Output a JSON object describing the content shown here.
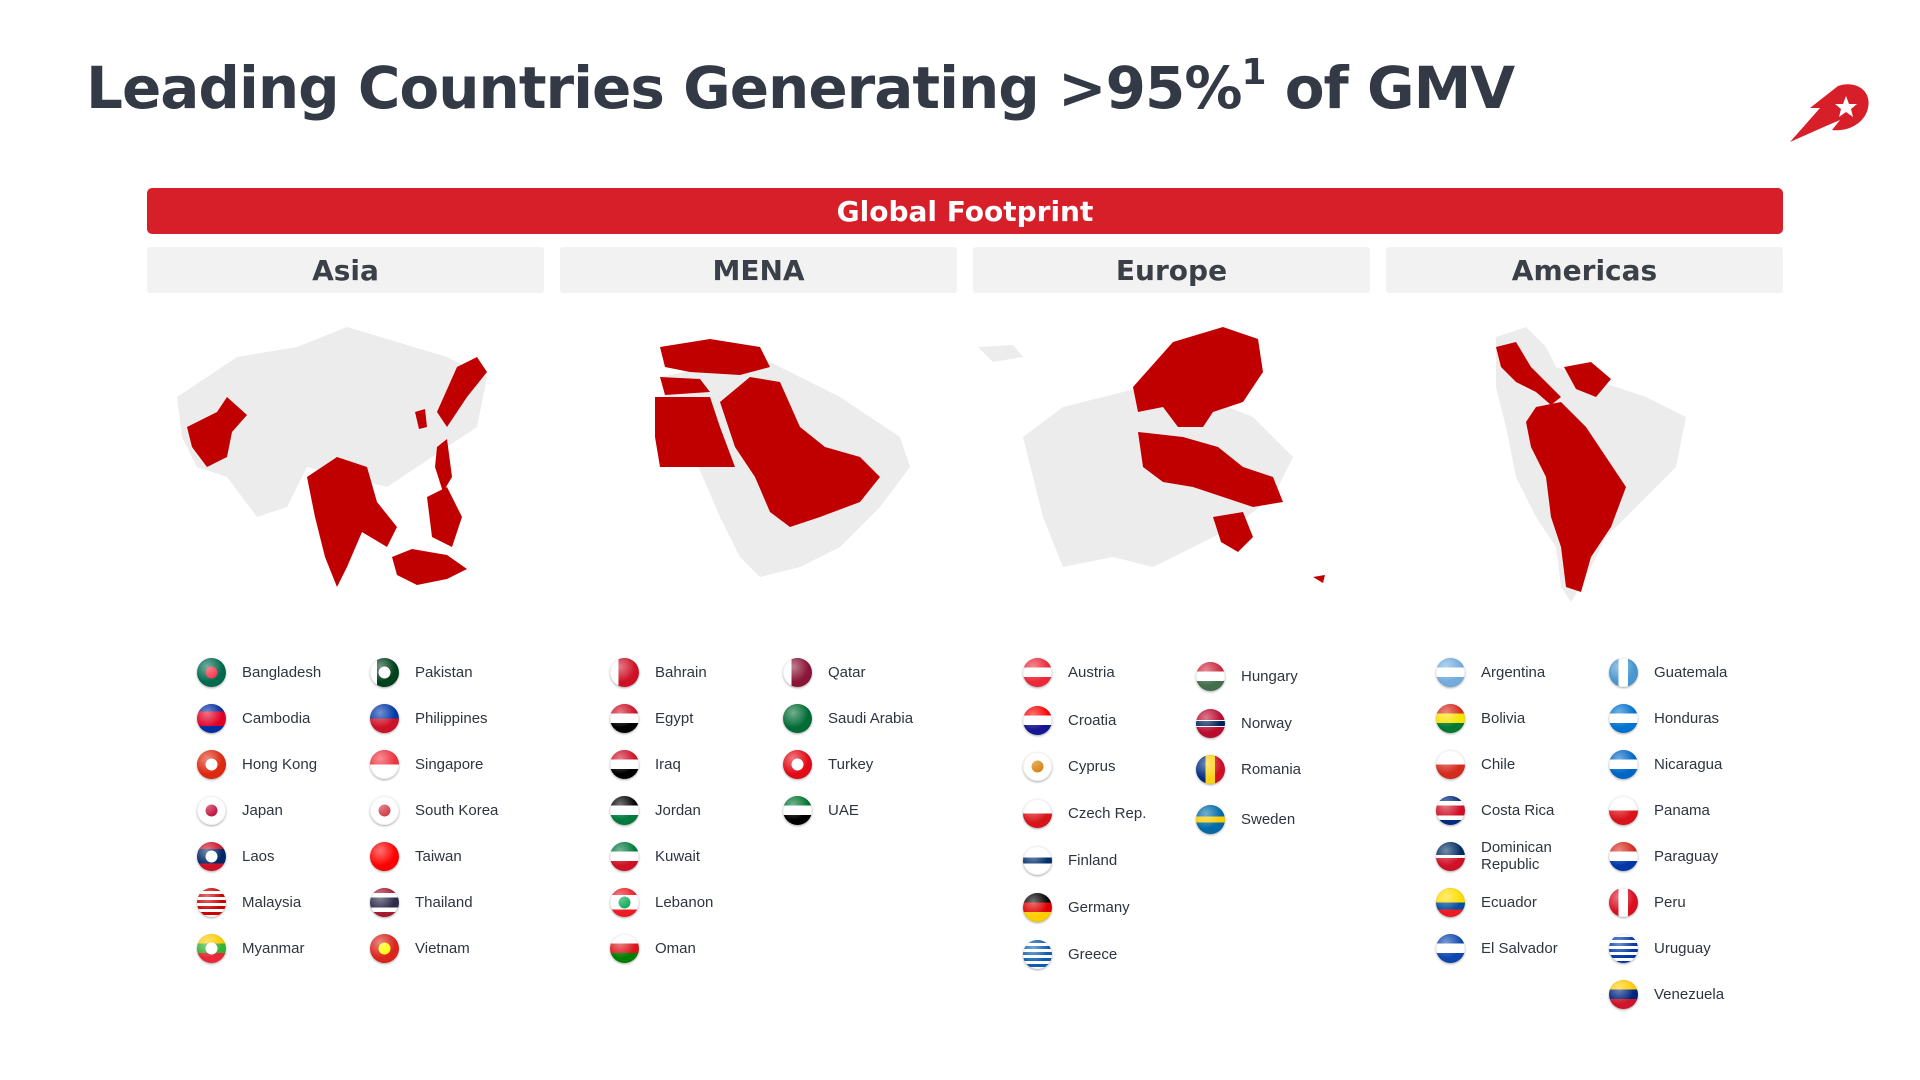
{
  "title": {
    "text": "Leading Countries Generating >95%",
    "sup": "1",
    "tail": " of GMV"
  },
  "banner": "Global Footprint",
  "colors": {
    "accent": "#d71f2a",
    "map_gray": "#ececec",
    "header_bg": "#f2f2f2"
  },
  "logo_icon": "rocket-star-logo",
  "regions": [
    {
      "key": "asia",
      "label": "Asia",
      "countries": [
        {
          "name": "Bangladesh",
          "flag": "linear-gradient(#006a4e,#006a4e)",
          "dot": "#f42a41"
        },
        {
          "name": "Cambodia",
          "flag": "linear-gradient(#032ea1 0 25%, #e00025 25% 75%, #032ea1 75%)"
        },
        {
          "name": "Hong Kong",
          "flag": "linear-gradient(#de2910,#de2910)",
          "dot": "#ffffff"
        },
        {
          "name": "Japan",
          "flag": "linear-gradient(#ffffff,#ffffff)",
          "dot": "#bc002d"
        },
        {
          "name": "Laos",
          "flag": "linear-gradient(#ce1126 0 25%, #002868 25% 75%, #ce1126 75%)",
          "dot": "#ffffff"
        },
        {
          "name": "Malaysia",
          "flag": "repeating-linear-gradient(#cc0001 0 3px, #ffffff 3px 6px)"
        },
        {
          "name": "Myanmar",
          "flag": "linear-gradient(#fecb00 0 33%, #34b233 33% 66%, #ea2839 66%)",
          "dot": "#ffffff"
        },
        {
          "name": "Pakistan",
          "flag": "linear-gradient(90deg,#ffffff 0 25%, #01411c 25%)",
          "dot": "#ffffff"
        },
        {
          "name": "Philippines",
          "flag": "linear-gradient(#0038a8 0 50%, #ce1126 50%)"
        },
        {
          "name": "Singapore",
          "flag": "linear-gradient(#ef3340 0 50%, #ffffff 50%)"
        },
        {
          "name": "South Korea",
          "flag": "linear-gradient(#ffffff,#ffffff)",
          "dot": "#cd2e3a"
        },
        {
          "name": "Taiwan",
          "flag": "linear-gradient(#fe0000,#fe0000)"
        },
        {
          "name": "Thailand",
          "flag": "linear-gradient(#a51931 0 17%, #ffffff 17% 33%, #2d2a4a 33% 67%, #ffffff 67% 83%, #a51931 83%)"
        },
        {
          "name": "Vietnam",
          "flag": "linear-gradient(#da251d,#da251d)",
          "dot": "#ffff00"
        }
      ]
    },
    {
      "key": "mena",
      "label": "MENA",
      "countries": [
        {
          "name": "Bahrain",
          "flag": "linear-gradient(90deg,#ffffff 0 30%, #ce1126 30%)"
        },
        {
          "name": "Egypt",
          "flag": "linear-gradient(#ce1126 0 33%, #ffffff 33% 66%, #000000 66%)"
        },
        {
          "name": "Iraq",
          "flag": "linear-gradient(#ce1126 0 33%, #ffffff 33% 66%, #000000 66%)"
        },
        {
          "name": "Jordan",
          "flag": "linear-gradient(#000000 0 33%, #ffffff 33% 66%, #007a3d 66%)"
        },
        {
          "name": "Kuwait",
          "flag": "linear-gradient(#007a3d 0 33%, #ffffff 33% 66%, #ce1126 66%)"
        },
        {
          "name": "Lebanon",
          "flag": "linear-gradient(#ed1c24 0 25%, #ffffff 25% 75%, #ed1c24 75%)",
          "dot": "#00a651"
        },
        {
          "name": "Oman",
          "flag": "linear-gradient(#ffffff 0 33%, #db161b 33% 66%, #008000 66%)"
        },
        {
          "name": "Qatar",
          "flag": "linear-gradient(90deg,#ffffff 0 30%, #8a1538 30%)"
        },
        {
          "name": "Saudi Arabia",
          "flag": "linear-gradient(#006c35,#006c35)"
        },
        {
          "name": "Turkey",
          "flag": "linear-gradient(#e30a17,#e30a17)",
          "dot": "#ffffff"
        },
        {
          "name": "UAE",
          "flag": "linear-gradient(#00732f 0 33%, #ffffff 33% 66%, #000000 66%)"
        }
      ]
    },
    {
      "key": "europe",
      "label": "Europe",
      "countries": [
        {
          "name": "Austria",
          "flag": "linear-gradient(#ed2939 0 33%, #ffffff 33% 66%, #ed2939 66%)"
        },
        {
          "name": "Croatia",
          "flag": "linear-gradient(#ff0000 0 33%, #ffffff 33% 66%, #171796 66%)"
        },
        {
          "name": "Cyprus",
          "flag": "linear-gradient(#ffffff,#ffffff)",
          "dot": "#d57800"
        },
        {
          "name": "Czech Rep.",
          "flag": "linear-gradient(#ffffff 0 50%, #d7141a 50%)"
        },
        {
          "name": "Finland",
          "flag": "linear-gradient(#ffffff 0 40%, #002f6c 40% 60%, #ffffff 60%)"
        },
        {
          "name": "Germany",
          "flag": "linear-gradient(#000000 0 33%, #dd0000 33% 66%, #ffce00 66%)"
        },
        {
          "name": "Greece",
          "flag": "repeating-linear-gradient(#0d5eaf 0 3px, #ffffff 3px 6px)"
        },
        {
          "name": "Hungary",
          "flag": "linear-gradient(#cd2a3e 0 33%, #ffffff 33% 66%, #436f4d 66%)"
        },
        {
          "name": "Norway",
          "flag": "linear-gradient(#ba0c2f 0 38%, #ffffff 38% 42%, #00205b 42% 58%, #ffffff 58% 62%, #ba0c2f 62%)"
        },
        {
          "name": "Romania",
          "flag": "linear-gradient(90deg,#002b7f 0 33%, #fcd116 33% 66%, #ce1126 66%)"
        },
        {
          "name": "Sweden",
          "flag": "linear-gradient(#006aa7 0 40%, #fecc00 40% 60%, #006aa7 60%)"
        }
      ]
    },
    {
      "key": "americas",
      "label": "Americas",
      "countries": [
        {
          "name": "Argentina",
          "flag": "linear-gradient(#74acdf 0 33%, #ffffff 33% 66%, #74acdf 66%)"
        },
        {
          "name": "Bolivia",
          "flag": "linear-gradient(#d52b1e 0 33%, #f9e300 33% 66%, #007934 66%)"
        },
        {
          "name": "Chile",
          "flag": "linear-gradient(#ffffff 0 50%, #d52b1e 50%)"
        },
        {
          "name": "Costa Rica",
          "flag": "linear-gradient(#002b7f 0 17%, #ffffff 17% 33%, #ce1126 33% 67%, #ffffff 67% 83%, #002b7f 83%)"
        },
        {
          "name": "Dominican Republic",
          "flag": "linear-gradient(#002d62 0 45%, #ffffff 45% 55%, #ce1126 55%)"
        },
        {
          "name": "Ecuador",
          "flag": "linear-gradient(#ffdd00 0 50%, #034ea2 50% 75%, #ed1c24 75%)"
        },
        {
          "name": "El Salvador",
          "flag": "linear-gradient(#0f47af 0 33%, #ffffff 33% 66%, #0f47af 66%)"
        },
        {
          "name": "Guatemala",
          "flag": "linear-gradient(90deg,#4997d0 0 33%, #ffffff 33% 66%, #4997d0 66%)"
        },
        {
          "name": "Honduras",
          "flag": "linear-gradient(#0073cf 0 33%, #ffffff 33% 66%, #0073cf 66%)"
        },
        {
          "name": "Nicaragua",
          "flag": "linear-gradient(#0067c6 0 33%, #ffffff 33% 66%, #0067c6 66%)"
        },
        {
          "name": "Panama",
          "flag": "linear-gradient(#ffffff 0 50%, #da121a 50%)"
        },
        {
          "name": "Paraguay",
          "flag": "linear-gradient(#d52b1e 0 33%, #ffffff 33% 66%, #0038a8 66%)"
        },
        {
          "name": "Peru",
          "flag": "linear-gradient(90deg,#d91023 0 33%, #ffffff 33% 66%, #d91023 66%)"
        },
        {
          "name": "Uruguay",
          "flag": "repeating-linear-gradient(#ffffff 0 3px, #0038a8 3px 6px)"
        },
        {
          "name": "Venezuela",
          "flag": "linear-gradient(#ffcc00 0 33%, #00247d 33% 66%, #cf142b 66%)"
        }
      ]
    }
  ]
}
